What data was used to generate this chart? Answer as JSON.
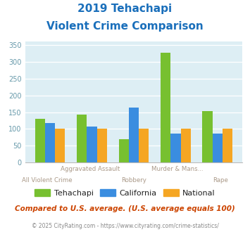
{
  "title_line1": "2019 Tehachapi",
  "title_line2": "Violent Crime Comparison",
  "categories": [
    "All Violent Crime",
    "Aggravated Assault",
    "Robbery",
    "Murder & Mans...",
    "Rape"
  ],
  "tehachapi": [
    130,
    143,
    70,
    328,
    153
  ],
  "california": [
    117,
    107,
    163,
    85,
    87
  ],
  "national": [
    100,
    100,
    100,
    100,
    100
  ],
  "color_tehachapi": "#77c030",
  "color_california": "#3a8de0",
  "color_national": "#f5a623",
  "ylim": [
    0,
    360
  ],
  "yticks": [
    0,
    50,
    100,
    150,
    200,
    250,
    300,
    350
  ],
  "bg_color": "#ddeef4",
  "subtitle_note": "Compared to U.S. average. (U.S. average equals 100)",
  "copyright": "© 2025 CityRating.com - https://www.cityrating.com/crime-statistics/",
  "title_color": "#1a6fbb",
  "subtitle_color": "#cc4400",
  "copyright_color": "#888888",
  "xlabel_top_color": "#aa9988",
  "xlabel_bot_color": "#aa9988",
  "tick_color": "#6699aa",
  "legend_text_color": "#222222"
}
